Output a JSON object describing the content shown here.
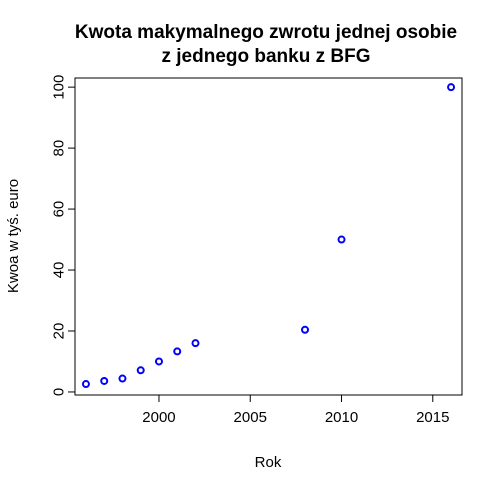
{
  "chart_data": {
    "type": "scatter",
    "title": "Kwota makymalnego zwrotu jednej osobie\nz jednego banku z BFG",
    "xlabel": "Rok",
    "ylabel": "Kwoa w tyś. euro",
    "xlim": [
      1995.4,
      2016.6
    ],
    "ylim": [
      -1,
      103
    ],
    "x_ticks": [
      2000,
      2005,
      2010,
      2015
    ],
    "y_ticks": [
      0,
      20,
      40,
      60,
      80,
      100
    ],
    "point_color": "#0000ff",
    "points": [
      {
        "x": 1996,
        "y": 2.6
      },
      {
        "x": 1997,
        "y": 3.6
      },
      {
        "x": 1998,
        "y": 4.4
      },
      {
        "x": 1999,
        "y": 7.1
      },
      {
        "x": 2000,
        "y": 10
      },
      {
        "x": 2001,
        "y": 13.3
      },
      {
        "x": 2002,
        "y": 16
      },
      {
        "x": 2008,
        "y": 20.4
      },
      {
        "x": 2010,
        "y": 50
      },
      {
        "x": 2016,
        "y": 100
      }
    ]
  }
}
